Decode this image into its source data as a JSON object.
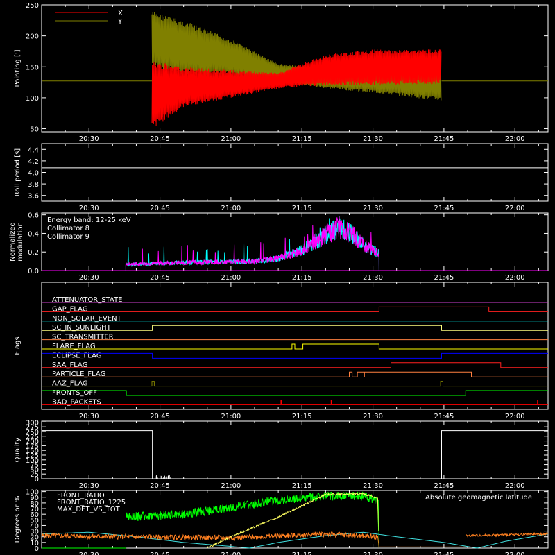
{
  "x_axis": {
    "tick_labels": [
      "20:30",
      "20:45",
      "21:00",
      "21:15",
      "21:30",
      "21:45",
      "22:00"
    ],
    "tick_minutes": [
      30,
      45,
      60,
      75,
      90,
      105,
      120
    ],
    "range_minutes": [
      20,
      127
    ]
  },
  "chart_data": [
    {
      "id": "pointing",
      "type": "line",
      "ylabel": "Pointing [']",
      "ylim": [
        45,
        250
      ],
      "yticks": [
        50,
        100,
        150,
        200,
        250
      ],
      "series": [
        {
          "name": "X",
          "color": "#ff0000"
        },
        {
          "name": "Y",
          "color": "#808000"
        }
      ],
      "description_points": {
        "baseline": 127,
        "start_min": 43.3,
        "end_min": 104.5,
        "x_envelope": [
          [
            43.3,
            48,
            160
          ],
          [
            50,
            85,
            150
          ],
          [
            60,
            100,
            145
          ],
          [
            70,
            115,
            140
          ],
          [
            80,
            120,
            170
          ],
          [
            90,
            120,
            178
          ],
          [
            104.5,
            122,
            178
          ]
        ],
        "y_envelope": [
          [
            43.3,
            150,
            240
          ],
          [
            50,
            135,
            225
          ],
          [
            60,
            135,
            195
          ],
          [
            70,
            125,
            155
          ],
          [
            80,
            115,
            148
          ],
          [
            90,
            108,
            150
          ],
          [
            104.5,
            95,
            150
          ]
        ]
      }
    },
    {
      "id": "roll_period",
      "type": "line",
      "ylabel": "Roll period [s]",
      "ylim": [
        3.5,
        4.5
      ],
      "yticks": [
        3.6,
        3.8,
        4.0,
        4.2,
        4.4
      ],
      "value": 4.08
    },
    {
      "id": "modulation",
      "type": "line",
      "ylabel": "Normalized modulation",
      "ylim": [
        0,
        0.62
      ],
      "yticks": [
        0.0,
        0.2,
        0.4,
        0.6
      ],
      "ytick_labels": [
        "0.0",
        "0.2",
        "0.4",
        "0.6"
      ],
      "annotation": "Energy band: 12-25 keV",
      "series": [
        {
          "name": "Collimator 8",
          "color": "#00ffff"
        },
        {
          "name": "Collimator 9",
          "color": "#ff00ff"
        }
      ],
      "profile": [
        [
          37,
          0.06
        ],
        [
          45,
          0.08
        ],
        [
          55,
          0.09
        ],
        [
          65,
          0.1
        ],
        [
          70,
          0.13
        ],
        [
          75,
          0.22
        ],
        [
          80,
          0.38
        ],
        [
          83,
          0.47
        ],
        [
          86,
          0.37
        ],
        [
          89,
          0.24
        ],
        [
          91,
          0.19
        ]
      ],
      "data_start_min": 37.8,
      "data_end_min": 91.3
    },
    {
      "id": "flags",
      "type": "line",
      "ylabel": "Flags",
      "flags": [
        {
          "name": "ATTENUATOR_STATE",
          "color": "#d040d0",
          "level": 0,
          "on": []
        },
        {
          "name": "GAP_FLAG",
          "color": "#ff2020",
          "level": 0,
          "on": [
            [
              91.3,
              114.5
            ]
          ]
        },
        {
          "name": "NON_SOLAR_EVENT",
          "color": "#00ffff",
          "level": 0,
          "on": []
        },
        {
          "name": "SC_IN_SUNLIGHT",
          "color": "#ffff80",
          "level": 1,
          "on": [
            [
              43.4,
              104.5
            ]
          ]
        },
        {
          "name": "SC_TRANSMITTER",
          "color": "#ff8040",
          "level": 0,
          "on": []
        },
        {
          "name": "FLARE_FLAG",
          "color": "#ffff00",
          "level": 0,
          "on": [
            [
              72.9,
              73.5
            ],
            [
              75.2,
              91.3
            ]
          ]
        },
        {
          "name": "ECLIPSE_FLAG",
          "color": "#0000ff",
          "level": 1,
          "on": [
            [
              20,
              43.4
            ],
            [
              104.5,
              127
            ]
          ]
        },
        {
          "name": "SAA_FLAG",
          "color": "#ff2020",
          "level": 0,
          "on": [
            [
              93.8,
              117
            ]
          ]
        },
        {
          "name": "PARTICLE_FLAG",
          "color": "#ff8040",
          "level": 0,
          "on": [
            [
              85,
              85.6
            ],
            [
              86.7,
              88.2
            ],
            [
              88.2,
              110.8
            ]
          ]
        },
        {
          "name": "AAZ_FLAG",
          "color": "#808000",
          "level": 0,
          "on": [
            [
              43.3,
              43.8
            ],
            [
              104.3,
              104.8
            ]
          ]
        },
        {
          "name": "FRONTS_OFF",
          "color": "#00ff00",
          "level": 1,
          "on": [
            [
              20,
              37.9
            ],
            [
              109.6,
              127
            ]
          ]
        },
        {
          "name": "BAD_PACKETS",
          "color": "#ff0000",
          "level": 0,
          "spikes": [
            70.6,
            81.2,
            124.8
          ]
        }
      ]
    },
    {
      "id": "quality",
      "type": "line",
      "ylabel": "Quality",
      "ylim": [
        0,
        305
      ],
      "yticks": [
        0,
        25,
        50,
        75,
        100,
        125,
        150,
        175,
        200,
        225,
        250,
        275,
        300
      ],
      "levels": [
        [
          20,
          43.4,
          255
        ],
        [
          104.5,
          127,
          255
        ]
      ]
    },
    {
      "id": "geomag",
      "type": "line",
      "ylabel": "Degrees or %",
      "ylim": [
        0,
        102
      ],
      "yticks": [
        0,
        10,
        20,
        30,
        40,
        50,
        60,
        70,
        80,
        90,
        100
      ],
      "annotation": "Absolute geomagnetic latitude",
      "annotation_color": "#40e0e0",
      "series": [
        {
          "name": "FRONT_RATIO",
          "color": "#ffff60"
        },
        {
          "name": "FRONT_RATIO_1225",
          "color": "#00ff00"
        },
        {
          "name": "MAX_DET_VS_TOT",
          "color": "#ff8020"
        }
      ],
      "front_ratio_1225": [
        [
          37.9,
          55
        ],
        [
          50,
          60
        ],
        [
          60,
          72
        ],
        [
          70,
          85
        ],
        [
          80,
          92
        ],
        [
          88,
          92
        ],
        [
          91,
          85
        ],
        [
          91.3,
          0
        ]
      ],
      "front_ratio": [
        [
          55,
          0
        ],
        [
          60,
          20
        ],
        [
          70,
          55
        ],
        [
          75,
          75
        ],
        [
          80,
          95
        ],
        [
          88,
          96
        ],
        [
          91,
          88
        ],
        [
          91.3,
          0
        ]
      ],
      "max_det": [
        [
          20,
          22
        ],
        [
          37.9,
          20
        ],
        [
          60,
          18
        ],
        [
          80,
          25
        ],
        [
          91,
          20
        ],
        [
          91.3,
          2
        ],
        [
          109.6,
          2
        ],
        [
          109.6,
          22
        ],
        [
          127,
          25
        ]
      ],
      "latitude": [
        [
          20,
          25
        ],
        [
          30,
          28
        ],
        [
          40,
          20
        ],
        [
          50,
          10
        ],
        [
          60,
          3
        ],
        [
          64,
          0
        ],
        [
          70,
          10
        ],
        [
          80,
          22
        ],
        [
          88,
          28
        ],
        [
          95,
          20
        ],
        [
          105,
          10
        ],
        [
          112,
          0
        ],
        [
          118,
          12
        ],
        [
          127,
          25
        ]
      ]
    }
  ]
}
